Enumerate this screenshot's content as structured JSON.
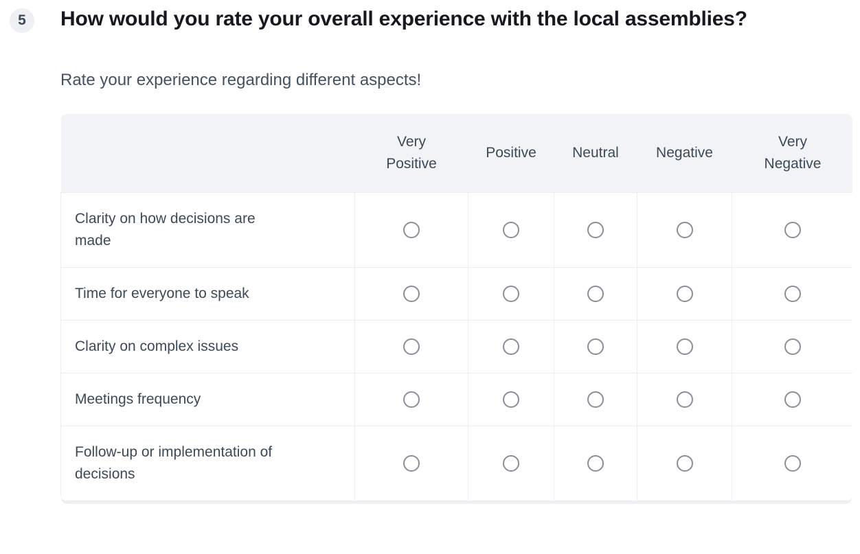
{
  "question": {
    "number": "5",
    "title": "How would you rate your overall experience with the local assemblies?",
    "subtitle": "Rate your experience regarding different aspects!"
  },
  "matrix": {
    "columns": [
      "Very Positive",
      "Positive",
      "Neutral",
      "Negative",
      "Very Negative"
    ],
    "rows": [
      "Clarity on how decisions are made",
      "Time for everyone to speak",
      "Clarity on complex issues",
      "Meetings frequency",
      "Follow-up or implementation of decisions"
    ],
    "selected": null
  },
  "colors": {
    "header_bg": "#f2f3f6",
    "border": "#ebedf0",
    "title_text": "#17191e",
    "slate_text": "#3e4956",
    "subtitle_text": "#46515f",
    "radio_border": "#8c8d97",
    "badge_bg": "#eef0f4",
    "shadow": "#edeff2"
  }
}
